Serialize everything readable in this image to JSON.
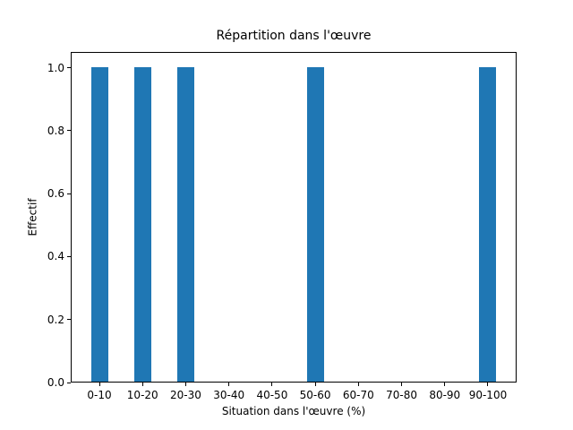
{
  "chart_data": {
    "type": "bar",
    "title": "Répartition dans l'œuvre",
    "xlabel": "Situation dans l'œuvre (%)",
    "ylabel": "Effectif",
    "categories": [
      "0-10",
      "10-20",
      "20-30",
      "30-40",
      "40-50",
      "50-60",
      "60-70",
      "70-80",
      "80-90",
      "90-100"
    ],
    "values": [
      1,
      1,
      1,
      0,
      0,
      1,
      0,
      0,
      0,
      1
    ],
    "ytick_labels": [
      "0.0",
      "0.2",
      "0.4",
      "0.6",
      "0.8",
      "1.0"
    ],
    "ylim": [
      0,
      1.05
    ],
    "bar_color": "#1f77b4",
    "axis_color": "#000000",
    "background_color": "#ffffff",
    "grid": false,
    "legend": "none",
    "bar_width_ratio": 0.4
  }
}
